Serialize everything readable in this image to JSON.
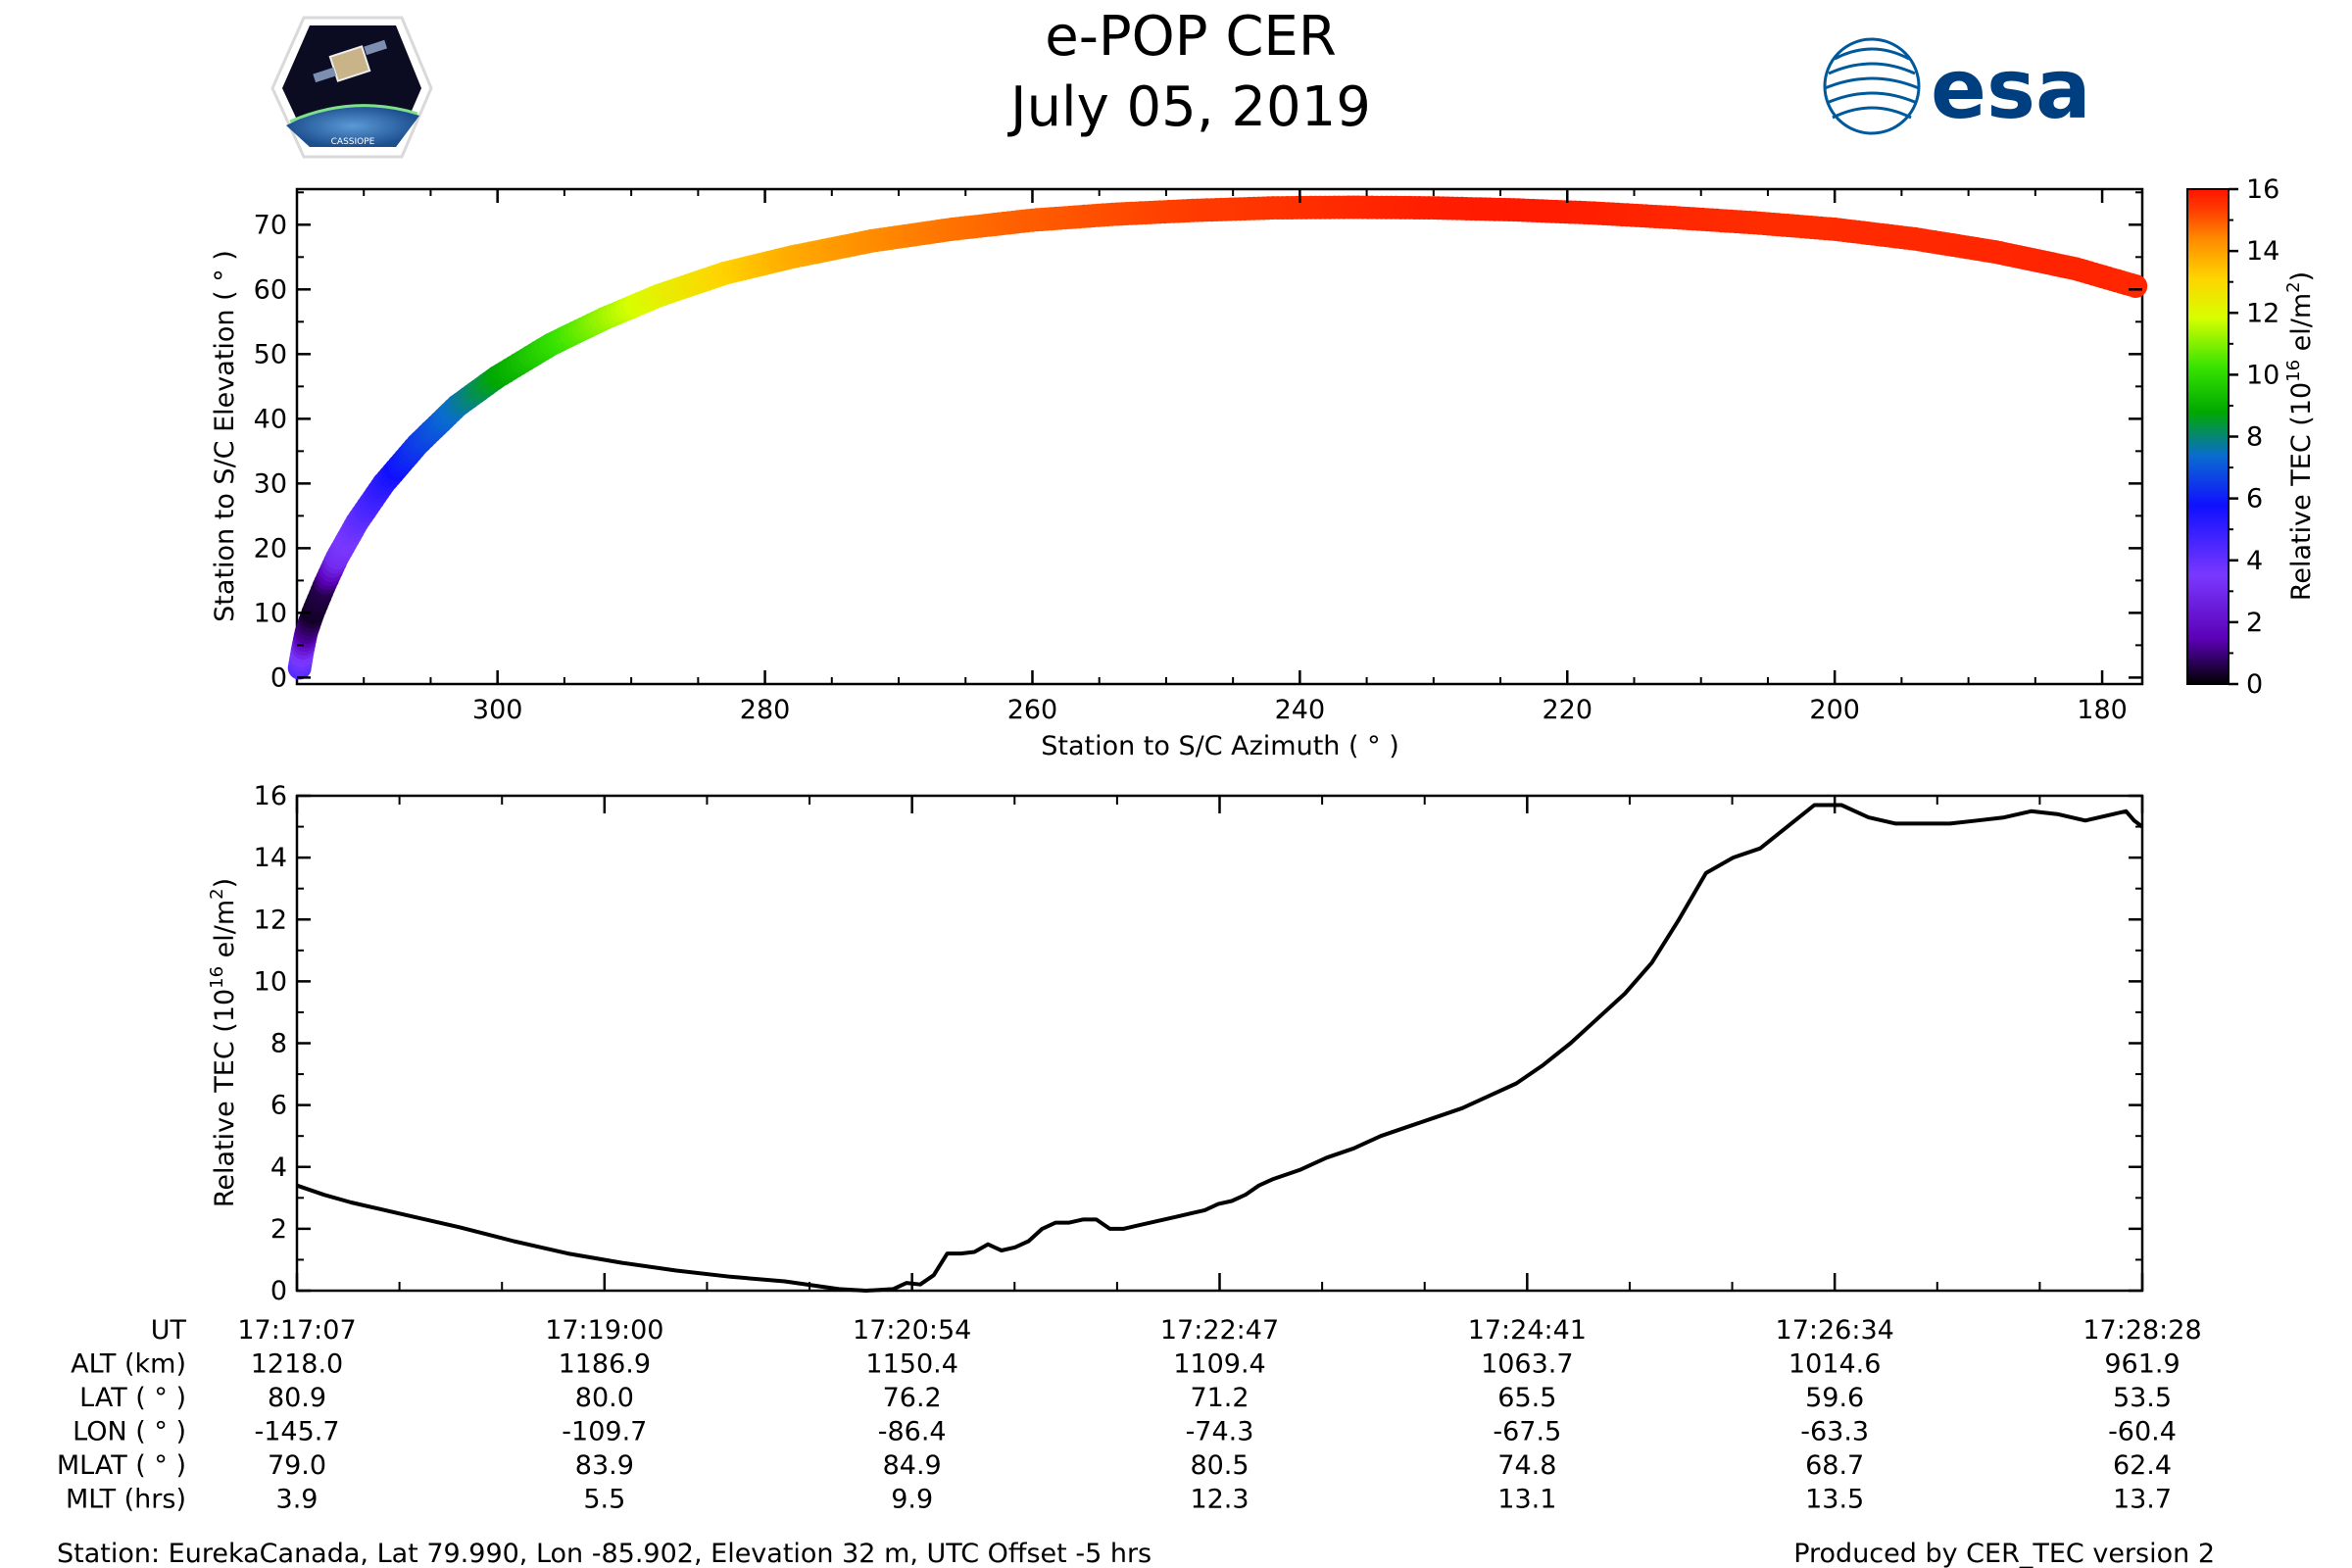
{
  "header": {
    "title": "e-POP CER",
    "date": "July 05, 2019",
    "left_logo_text": "CASSIOPE",
    "right_logo_text": "esa"
  },
  "colors": {
    "line": "#000000",
    "colormap": [
      "#000000",
      "#5a00b5",
      "#7a38ff",
      "#1010ff",
      "#0a6bd0",
      "#00a800",
      "#37e300",
      "#d7ff00",
      "#ffd400",
      "#ff8a00",
      "#ff3a00",
      "#ff1400"
    ]
  },
  "chart_data": [
    {
      "type": "scatter",
      "id": "elevation_vs_azimuth",
      "xlabel": "Station to S/C Azimuth ( ° )",
      "ylabel": "Station to S/C Elevation ( ° )",
      "xlim": [
        315,
        177
      ],
      "ylim": [
        -1,
        75.5
      ],
      "xticks": [
        300,
        280,
        260,
        240,
        220,
        200,
        180
      ],
      "yticks": [
        0,
        10,
        20,
        30,
        40,
        50,
        60,
        70
      ],
      "color_by": "Relative TEC",
      "points": [
        {
          "az": 314.8,
          "el": 1.5,
          "tec": 3.4
        },
        {
          "az": 314.6,
          "el": 4.0,
          "tec": 2.8
        },
        {
          "az": 314.3,
          "el": 7.0,
          "tec": 1.2
        },
        {
          "az": 313.8,
          "el": 10.0,
          "tec": 0.3
        },
        {
          "az": 313.0,
          "el": 14.0,
          "tec": 0.6
        },
        {
          "az": 312.0,
          "el": 18.5,
          "tec": 2.6
        },
        {
          "az": 310.5,
          "el": 24.0,
          "tec": 3.2
        },
        {
          "az": 308.5,
          "el": 30.0,
          "tec": 4.0
        },
        {
          "az": 306.0,
          "el": 36.0,
          "tec": 5.0
        },
        {
          "az": 303.0,
          "el": 42.0,
          "tec": 6.0
        },
        {
          "az": 300.0,
          "el": 46.5,
          "tec": 7.2
        },
        {
          "az": 296.0,
          "el": 51.5,
          "tec": 8.5
        },
        {
          "az": 292.0,
          "el": 55.5,
          "tec": 9.6
        },
        {
          "az": 288.0,
          "el": 59.0,
          "tec": 10.6
        },
        {
          "az": 283.0,
          "el": 62.5,
          "tec": 11.6
        },
        {
          "az": 278.0,
          "el": 65.0,
          "tec": 12.4
        },
        {
          "az": 272.0,
          "el": 67.5,
          "tec": 13.0
        },
        {
          "az": 266.0,
          "el": 69.3,
          "tec": 13.5
        },
        {
          "az": 260.0,
          "el": 70.7,
          "tec": 13.9
        },
        {
          "az": 254.0,
          "el": 71.6,
          "tec": 14.2
        },
        {
          "az": 248.0,
          "el": 72.2,
          "tec": 14.5
        },
        {
          "az": 242.0,
          "el": 72.6,
          "tec": 14.8
        },
        {
          "az": 236.0,
          "el": 72.7,
          "tec": 15.2
        },
        {
          "az": 230.0,
          "el": 72.6,
          "tec": 15.6
        },
        {
          "az": 224.0,
          "el": 72.3,
          "tec": 15.8
        },
        {
          "az": 218.0,
          "el": 71.8,
          "tec": 15.6
        },
        {
          "az": 212.0,
          "el": 71.1,
          "tec": 15.3
        },
        {
          "az": 206.0,
          "el": 70.3,
          "tec": 15.1
        },
        {
          "az": 200.0,
          "el": 69.3,
          "tec": 15.1
        },
        {
          "az": 194.0,
          "el": 67.8,
          "tec": 15.2
        },
        {
          "az": 188.0,
          "el": 65.8,
          "tec": 15.3
        },
        {
          "az": 182.0,
          "el": 63.2,
          "tec": 15.4
        },
        {
          "az": 177.5,
          "el": 60.5,
          "tec": 15.3
        }
      ]
    },
    {
      "type": "line",
      "id": "tec_vs_time",
      "ylabel": "Relative TEC (10^16 el/m^2)",
      "xlim": [
        0,
        681
      ],
      "ylim": [
        0,
        16
      ],
      "yticks": [
        0,
        2,
        4,
        6,
        8,
        10,
        12,
        14,
        16
      ],
      "x_units": "seconds after 17:17:07",
      "series": [
        {
          "name": "Relative TEC",
          "x": [
            0,
            10,
            20,
            40,
            60,
            80,
            100,
            120,
            140,
            160,
            180,
            200,
            210,
            220,
            225,
            230,
            235,
            240,
            245,
            250,
            255,
            260,
            265,
            270,
            275,
            280,
            285,
            290,
            295,
            300,
            305,
            310,
            315,
            320,
            325,
            330,
            335,
            340,
            345,
            350,
            355,
            360,
            370,
            380,
            390,
            400,
            410,
            420,
            430,
            440,
            450,
            460,
            470,
            480,
            490,
            500,
            510,
            520,
            530,
            540,
            550,
            560,
            570,
            580,
            590,
            600,
            610,
            620,
            630,
            640,
            650,
            660,
            670,
            675,
            678,
            681
          ],
          "values": [
            3.4,
            3.1,
            2.85,
            2.45,
            2.05,
            1.6,
            1.2,
            0.9,
            0.65,
            0.45,
            0.3,
            0.05,
            0.0,
            0.05,
            0.25,
            0.2,
            0.5,
            1.2,
            1.2,
            1.25,
            1.5,
            1.3,
            1.4,
            1.6,
            2.0,
            2.2,
            2.2,
            2.3,
            2.3,
            2.0,
            2.0,
            2.1,
            2.2,
            2.3,
            2.4,
            2.5,
            2.6,
            2.8,
            2.9,
            3.1,
            3.4,
            3.6,
            3.9,
            4.3,
            4.6,
            5.0,
            5.3,
            5.6,
            5.9,
            6.3,
            6.7,
            7.3,
            8.0,
            8.8,
            9.6,
            10.6,
            12.0,
            13.5,
            14.0,
            14.3,
            15.0,
            15.7,
            15.7,
            15.3,
            15.1,
            15.1,
            15.1,
            15.2,
            15.3,
            15.5,
            15.4,
            15.2,
            15.4,
            15.5,
            15.2,
            15.0
          ]
        }
      ]
    },
    {
      "type": "colorbar",
      "id": "tec_colorbar",
      "label": "Relative TEC (10^16 el/m^2)",
      "range": [
        0,
        16
      ],
      "ticks": [
        0,
        2,
        4,
        6,
        8,
        10,
        12,
        14,
        16
      ]
    }
  ],
  "labels": {
    "scatter_ylabel": "Station to S/C Elevation ( ° )",
    "scatter_xlabel": "Station to S/C Azimuth ( ° )",
    "colorbar_label_main": "Relative TEC (10",
    "colorbar_label_exp": "16",
    "colorbar_label_tail": " el/m",
    "colorbar_label_sq": "2",
    "colorbar_label_close": ")",
    "line_ylabel_main": "Relative TEC (10",
    "line_ylabel_exp": "16",
    "line_ylabel_tail": " el/m",
    "line_ylabel_sq": "2",
    "line_ylabel_close": ")"
  },
  "ephemeris": {
    "row_labels": [
      "UT",
      "ALT (km)",
      "LAT ( ° )",
      "LON ( ° )",
      "MLAT ( ° )",
      "MLT (hrs)"
    ],
    "columns": [
      {
        "UT": "17:17:07",
        "ALT": "1218.0",
        "LAT": "80.9",
        "LON": "-145.7",
        "MLAT": "79.0",
        "MLT": "3.9"
      },
      {
        "UT": "17:19:00",
        "ALT": "1186.9",
        "LAT": "80.0",
        "LON": "-109.7",
        "MLAT": "83.9",
        "MLT": "5.5"
      },
      {
        "UT": "17:20:54",
        "ALT": "1150.4",
        "LAT": "76.2",
        "LON": "-86.4",
        "MLAT": "84.9",
        "MLT": "9.9"
      },
      {
        "UT": "17:22:47",
        "ALT": "1109.4",
        "LAT": "71.2",
        "LON": "-74.3",
        "MLAT": "80.5",
        "MLT": "12.3"
      },
      {
        "UT": "17:24:41",
        "ALT": "1063.7",
        "LAT": "65.5",
        "LON": "-67.5",
        "MLAT": "74.8",
        "MLT": "13.1"
      },
      {
        "UT": "17:26:34",
        "ALT": "1014.6",
        "LAT": "59.6",
        "LON": "-63.3",
        "MLAT": "68.7",
        "MLT": "13.5"
      },
      {
        "UT": "17:28:28",
        "ALT": "961.9",
        "LAT": "53.5",
        "LON": "-60.4",
        "MLAT": "62.4",
        "MLT": "13.7"
      }
    ]
  },
  "footer": {
    "station": "Station: EurekaCanada, Lat 79.990, Lon -85.902, Elevation 32 m, UTC Offset -5 hrs",
    "produced_by": "Produced by CER_TEC version 2"
  }
}
